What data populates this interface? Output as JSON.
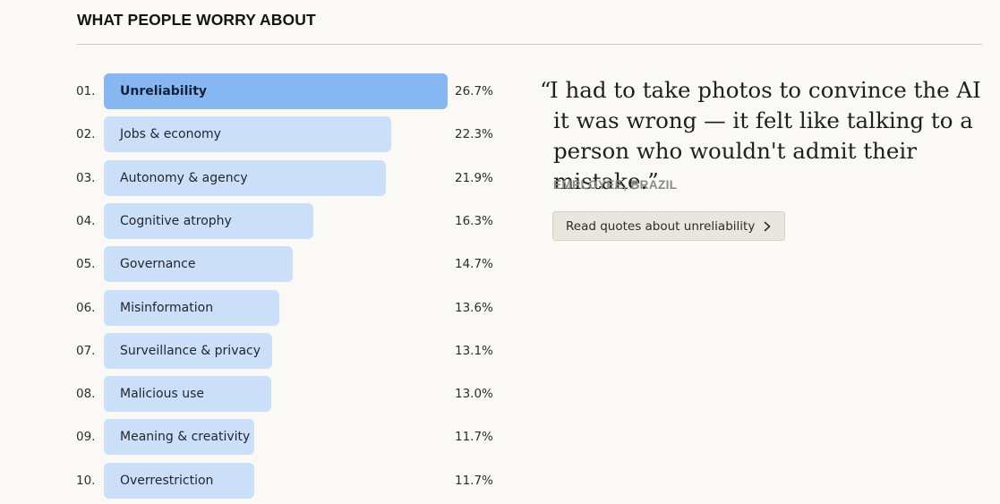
{
  "section": {
    "title": "WHAT PEOPLE WORRY ABOUT"
  },
  "chart_data": {
    "type": "bar",
    "orientation": "horizontal",
    "title": "WHAT PEOPLE WORRY ABOUT",
    "ranks": [
      "01.",
      "02.",
      "03.",
      "04.",
      "05.",
      "06.",
      "07.",
      "08.",
      "09.",
      "10."
    ],
    "categories": [
      "Unreliability",
      "Jobs & economy",
      "Autonomy & agency",
      "Cognitive atrophy",
      "Governance",
      "Misinformation",
      "Surveillance & privacy",
      "Malicious use",
      "Meaning & creativity",
      "Overrestriction"
    ],
    "values": [
      26.7,
      22.3,
      21.9,
      16.3,
      14.7,
      13.6,
      13.1,
      13.0,
      11.7,
      11.7
    ],
    "value_labels": [
      "26.7%",
      "22.3%",
      "21.9%",
      "16.3%",
      "14.7%",
      "13.6%",
      "13.1%",
      "13.0%",
      "11.7%",
      "11.7%"
    ],
    "selected_index": 0,
    "colors": {
      "bar": "#cbe0f8",
      "bar_selected": "#87b7f1"
    }
  },
  "quote": {
    "open_mark": "“",
    "text": "I had to take photos to convince the AI it was wrong — it felt like talking to a person who wouldn't admit their mistake.”",
    "attribution": "EMPLOYEE, BRAZIL",
    "button_label": "Read quotes about unreliability"
  }
}
